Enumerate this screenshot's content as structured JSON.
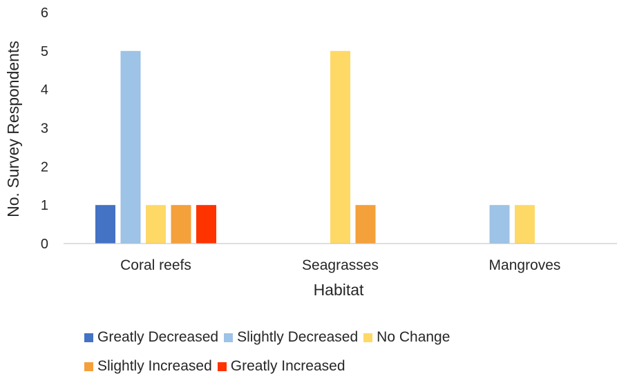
{
  "chart_data": {
    "type": "bar",
    "categories": [
      "Coral reefs",
      "Seagrasses",
      "Mangroves"
    ],
    "series": [
      {
        "name": "Greatly Decreased",
        "color": "#4472c4",
        "values": [
          1,
          0,
          0
        ]
      },
      {
        "name": "Slightly Decreased",
        "color": "#9dc3e6",
        "values": [
          5,
          0,
          1
        ]
      },
      {
        "name": "No Change",
        "color": "#ffd966",
        "values": [
          1,
          5,
          1
        ]
      },
      {
        "name": "Slightly Increased",
        "color": "#f4a03b",
        "values": [
          1,
          1,
          0
        ]
      },
      {
        "name": "Greatly Increased",
        "color": "#ff3300",
        "values": [
          1,
          0,
          0
        ]
      }
    ],
    "title": "",
    "xlabel": "Habitat",
    "ylabel": "No. Survey Respondents",
    "ylim": [
      0,
      6
    ],
    "yticks": [
      "0",
      "1",
      "2",
      "3",
      "4",
      "5",
      "6"
    ],
    "grid": false,
    "legend_position": "bottom"
  }
}
